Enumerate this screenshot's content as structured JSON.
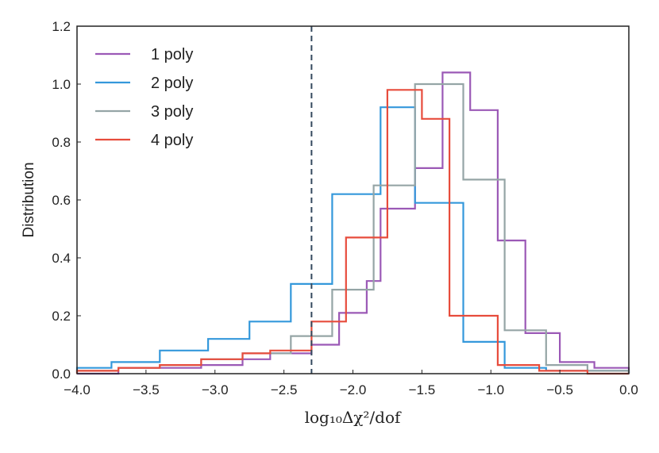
{
  "chart_data": {
    "type": "line",
    "style": "step-histogram",
    "xlabel": "log₁₀Δχ²/dof",
    "ylabel": "Distribution",
    "xlim": [
      -4.0,
      0.0
    ],
    "ylim": [
      0.0,
      1.2
    ],
    "xticks": [
      "−4.0",
      "−3.5",
      "−3.0",
      "−2.5",
      "−2.0",
      "−1.5",
      "−1.0",
      "−0.5",
      "0.0"
    ],
    "yticks": [
      "0.0",
      "0.2",
      "0.4",
      "0.6",
      "0.8",
      "1.0",
      "1.2"
    ],
    "grid": false,
    "legend_position": "top-left",
    "vline": {
      "x": -2.3,
      "style": "dashed",
      "color": "#34495e"
    },
    "series": [
      {
        "name": "1 poly",
        "color": "#9b59b6",
        "edges": [
          -4.0,
          -3.7,
          -3.4,
          -3.1,
          -2.8,
          -2.6,
          -2.3,
          -2.1,
          -1.9,
          -1.8,
          -1.55,
          -1.35,
          -1.15,
          -0.95,
          -0.75,
          -0.5,
          -0.25,
          0.0
        ],
        "values": [
          0.0,
          0.02,
          0.02,
          0.03,
          0.05,
          0.07,
          0.1,
          0.21,
          0.32,
          0.57,
          0.71,
          1.04,
          0.91,
          0.46,
          0.14,
          0.04,
          0.02
        ]
      },
      {
        "name": "2 poly",
        "color": "#3498db",
        "edges": [
          -4.0,
          -3.75,
          -3.4,
          -3.05,
          -2.75,
          -2.45,
          -2.15,
          -1.8,
          -1.55,
          -1.2,
          -0.9,
          -0.6,
          -0.3,
          0.0
        ],
        "values": [
          0.02,
          0.04,
          0.08,
          0.12,
          0.18,
          0.31,
          0.62,
          0.92,
          0.59,
          0.11,
          0.02,
          0.01,
          0.01
        ]
      },
      {
        "name": "3 poly",
        "color": "#95a5a6",
        "edges": [
          -4.0,
          -3.7,
          -3.4,
          -3.1,
          -2.8,
          -2.45,
          -2.15,
          -1.85,
          -1.55,
          -1.2,
          -0.9,
          -0.6,
          -0.3,
          0.0
        ],
        "values": [
          0.01,
          0.02,
          0.03,
          0.05,
          0.07,
          0.13,
          0.29,
          0.65,
          1.0,
          0.67,
          0.15,
          0.03,
          0.01
        ]
      },
      {
        "name": "4 poly",
        "color": "#e74c3c",
        "edges": [
          -4.0,
          -3.7,
          -3.4,
          -3.1,
          -2.8,
          -2.6,
          -2.3,
          -2.05,
          -1.75,
          -1.5,
          -1.3,
          -0.95,
          -0.65,
          -0.3,
          0.0
        ],
        "values": [
          0.01,
          0.02,
          0.03,
          0.05,
          0.07,
          0.08,
          0.18,
          0.47,
          0.98,
          0.88,
          0.2,
          0.03,
          0.01,
          0.0
        ]
      }
    ]
  }
}
